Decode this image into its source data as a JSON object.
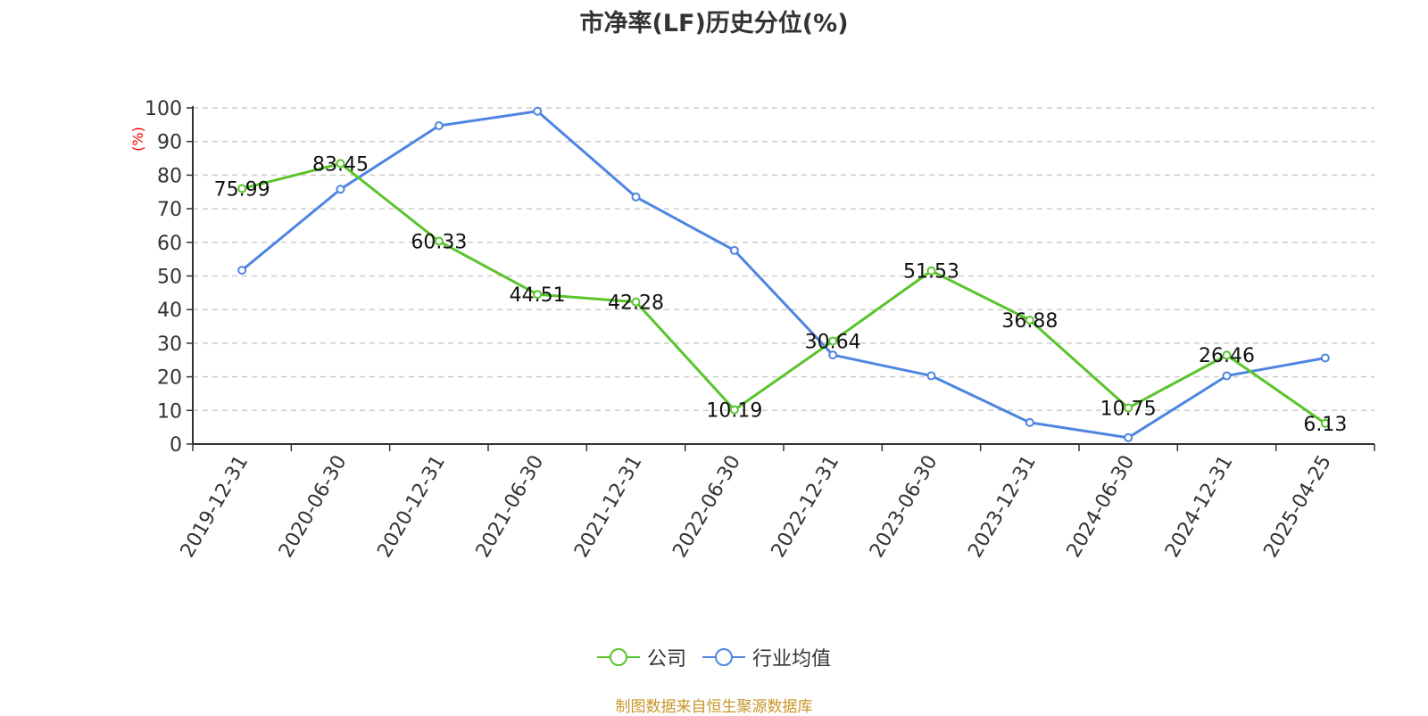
{
  "title": "市净率(LF)历史分位(%)",
  "source": "制图数据来自恒生聚源数据库",
  "legend": [
    {
      "label": "公司",
      "color": "#5ac42d"
    },
    {
      "label": "行业均值",
      "color": "#4e85e0"
    }
  ],
  "chart_data": {
    "type": "line",
    "title": "市净率(LF)历史分位(%)",
    "ylabel": "(%)",
    "ylabel_color": "#ff0000",
    "ylim": [
      0,
      100
    ],
    "yticks": [
      0,
      10,
      20,
      30,
      40,
      50,
      60,
      70,
      80,
      90,
      100
    ],
    "grid": true,
    "legend_position": "bottom",
    "categories": [
      "2019-12-31",
      "2020-06-30",
      "2020-12-31",
      "2021-06-30",
      "2021-12-31",
      "2022-06-30",
      "2022-12-31",
      "2023-06-30",
      "2023-12-31",
      "2024-06-30",
      "2024-12-31",
      "2025-04-25"
    ],
    "series": [
      {
        "name": "公司",
        "color": "#5ac42d",
        "values": [
          75.99,
          83.45,
          60.33,
          44.51,
          42.28,
          10.19,
          30.64,
          51.53,
          36.88,
          10.75,
          26.46,
          6.13
        ],
        "show_labels": true
      },
      {
        "name": "行业均值",
        "color": "#4e85e0",
        "values": [
          51.7,
          75.8,
          94.7,
          99.0,
          73.5,
          57.6,
          26.5,
          20.3,
          6.4,
          1.9,
          20.3,
          25.6
        ],
        "show_labels": false
      }
    ]
  }
}
